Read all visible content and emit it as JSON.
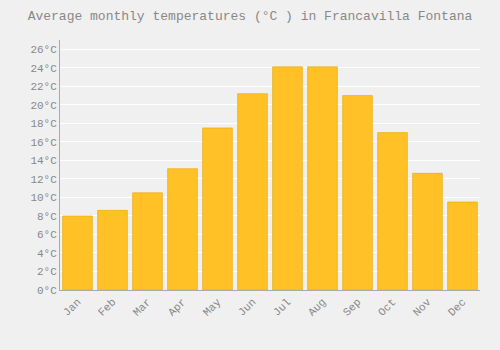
{
  "chart_data": {
    "type": "bar",
    "title": "Average monthly temperatures (°C ) in Francavilla Fontana",
    "categories": [
      "Jan",
      "Feb",
      "Mar",
      "Apr",
      "May",
      "Jun",
      "Jul",
      "Aug",
      "Sep",
      "Oct",
      "Nov",
      "Dec"
    ],
    "values": [
      8.0,
      8.6,
      10.5,
      13.1,
      17.5,
      21.2,
      24.1,
      24.1,
      21.0,
      17.0,
      12.6,
      9.5
    ],
    "color": "#FFC125",
    "ylim": [
      0,
      27
    ],
    "yticks": [
      {
        "value": 0,
        "label": "0°C"
      },
      {
        "value": 2,
        "label": "2°C"
      },
      {
        "value": 4,
        "label": "4°C"
      },
      {
        "value": 6,
        "label": "6°C"
      },
      {
        "value": 8,
        "label": "8°C"
      },
      {
        "value": 10,
        "label": "10°C"
      },
      {
        "value": 12,
        "label": "12°C"
      },
      {
        "value": 14,
        "label": "14°C"
      },
      {
        "value": 16,
        "label": "16°C"
      },
      {
        "value": 18,
        "label": "18°C"
      },
      {
        "value": 20,
        "label": "20°C"
      },
      {
        "value": 22,
        "label": "22°C"
      },
      {
        "value": 24,
        "label": "24°C"
      },
      {
        "value": 26,
        "label": "26°C"
      }
    ],
    "grid": true
  }
}
